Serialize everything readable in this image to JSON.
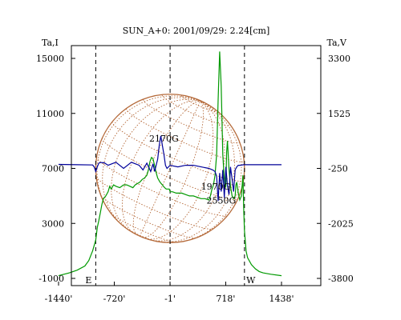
{
  "chart_data": {
    "type": "line",
    "title": "SUN_A+0: 2001/09/29: 2.24[cm]",
    "xlim": [
      -1440,
      1438
    ],
    "x_ticks": [
      -1440,
      -720,
      -1,
      718,
      1438
    ],
    "x_tick_labels": [
      "-1440'",
      "-720'",
      "-1'",
      "718'",
      "1438'"
    ],
    "left_axis": {
      "label": "Ta,I",
      "ylim": [
        -1000,
        15000
      ],
      "ticks": [
        -1000,
        3000,
        7000,
        11000,
        15000
      ],
      "tick_labels": [
        "-1000",
        "3000",
        "7000",
        "11000",
        "15000"
      ]
    },
    "right_axis": {
      "label": "Ta,V",
      "ylim": [
        -3800,
        3300
      ],
      "ticks": [
        -3800,
        -2025,
        -250,
        1525,
        3300
      ],
      "tick_labels": [
        "-3800",
        "-2025",
        "-250",
        "1525",
        "3300"
      ]
    },
    "vertical_lines": [
      {
        "x": -960,
        "label": "E"
      },
      {
        "x": 0
      },
      {
        "x": 960,
        "label": "W"
      }
    ],
    "series": [
      {
        "axis": "left",
        "color": "#009900",
        "x": [
          -1440,
          -1300,
          -1200,
          -1100,
          -1050,
          -1000,
          -960,
          -940,
          -920,
          -900,
          -880,
          -860,
          -830,
          -800,
          -780,
          -760,
          -730,
          -700,
          -650,
          -600,
          -560,
          -520,
          -480,
          -450,
          -420,
          -390,
          -360,
          -330,
          -300,
          -280,
          -260,
          -240,
          -220,
          -200,
          -180,
          -160,
          -130,
          -100,
          -70,
          -50,
          -30,
          -10,
          0,
          30,
          80,
          150,
          200,
          250,
          300,
          350,
          400,
          450,
          500,
          520,
          540,
          560,
          580,
          600,
          620,
          640,
          660,
          680,
          700,
          710,
          720,
          730,
          740,
          760,
          780,
          800,
          820,
          840,
          850,
          860,
          880,
          900,
          920,
          940,
          950,
          960,
          980,
          1000,
          1050,
          1100,
          1150,
          1200,
          1300,
          1438
        ],
        "values": [
          -800,
          -600,
          -400,
          -100,
          300,
          1000,
          1800,
          2700,
          3200,
          3800,
          4400,
          4800,
          5000,
          5300,
          5700,
          5500,
          5800,
          5700,
          5600,
          5800,
          5800,
          5700,
          5600,
          5800,
          5900,
          6000,
          6200,
          6300,
          6500,
          6900,
          7500,
          7800,
          7700,
          7200,
          6700,
          6300,
          6000,
          5800,
          5600,
          5500,
          5500,
          5500,
          5300,
          5300,
          5200,
          5200,
          5100,
          5000,
          5000,
          4900,
          4800,
          4800,
          4700,
          5000,
          5500,
          5800,
          6500,
          8000,
          12000,
          15500,
          13000,
          8000,
          6200,
          5600,
          5700,
          8200,
          9000,
          7000,
          5700,
          5000,
          4800,
          5000,
          5800,
          6000,
          5200,
          4700,
          5000,
          6500,
          4000,
          2500,
          1000,
          500,
          0,
          -300,
          -500,
          -600,
          -700,
          -800
        ]
      },
      {
        "axis": "right",
        "color": "#000099",
        "x": [
          -1440,
          -1200,
          -1000,
          -980,
          -960,
          -940,
          -920,
          -900,
          -850,
          -800,
          -700,
          -600,
          -500,
          -450,
          -400,
          -350,
          -300,
          -250,
          -220,
          -200,
          -180,
          -160,
          -140,
          -120,
          -100,
          -80,
          -60,
          -40,
          -20,
          0,
          100,
          200,
          300,
          400,
          500,
          550,
          580,
          600,
          620,
          640,
          660,
          680,
          700,
          720,
          740,
          760,
          780,
          800,
          820,
          840,
          860,
          880,
          900,
          950,
          1000,
          1200,
          1438
        ],
        "values": [
          -120,
          -130,
          -140,
          -200,
          -350,
          -200,
          -80,
          -60,
          -70,
          -150,
          -50,
          -250,
          -50,
          -100,
          -150,
          -300,
          -80,
          -350,
          -100,
          -350,
          -150,
          50,
          500,
          800,
          500,
          200,
          -150,
          -250,
          -200,
          -150,
          -200,
          -150,
          -150,
          -200,
          -250,
          -300,
          -350,
          -500,
          -1300,
          -400,
          -1000,
          -300,
          -1200,
          -200,
          -800,
          -1100,
          -200,
          -600,
          -1000,
          -300,
          -200,
          -150,
          -150,
          -130,
          -130,
          -130,
          -130
        ]
      }
    ],
    "annotations": [
      {
        "text": "2170G",
        "x": -80,
        "y_left": 8950
      },
      {
        "text": "1970G",
        "x": 590,
        "y_left": 5450
      },
      {
        "text": "2550G",
        "x": 660,
        "y_left": 4450
      }
    ],
    "disk": {
      "center_x": 0,
      "center_y_left": 7000,
      "radius_x": 960,
      "color": "#b56a3a"
    }
  }
}
